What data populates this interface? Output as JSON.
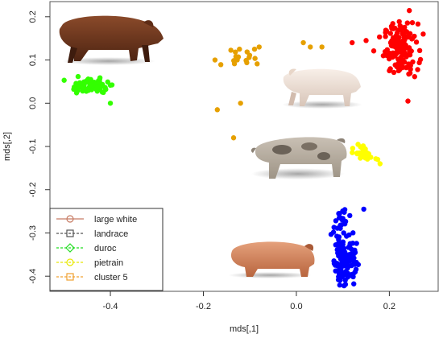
{
  "chart_data": {
    "type": "scatter",
    "xlabel": "mds[,1]",
    "ylabel": "mds[,2]",
    "xlim": [
      -0.53,
      0.305
    ],
    "ylim": [
      -0.435,
      0.235
    ],
    "x_ticks": [
      -0.4,
      -0.2,
      0.0,
      0.2
    ],
    "x_tick_labels": [
      "-0.4",
      "-0.2",
      "0.0",
      "0.2"
    ],
    "y_ticks": [
      -0.4,
      -0.3,
      -0.2,
      -0.1,
      0.0,
      0.1,
      0.2
    ],
    "y_tick_labels": [
      "-0.4",
      "-0.3",
      "-0.2",
      "-0.1",
      "0.0",
      "0.1",
      "0.2"
    ],
    "grid": false,
    "legend_position": "bottom-left",
    "legend": [
      {
        "label": "large white",
        "color": "#c77b63",
        "symbol": "circle"
      },
      {
        "label": "landrace",
        "color": "#555555",
        "symbol": "square"
      },
      {
        "label": "duroc",
        "color": "#22dd22",
        "symbol": "diamond"
      },
      {
        "label": "pietrain",
        "color": "#e8e800",
        "symbol": "circle"
      },
      {
        "label": "cluster 5",
        "color": "#f0a030",
        "symbol": "square"
      }
    ],
    "series": [
      {
        "color": "#ff0000",
        "clusters": [
          {
            "cx": 0.225,
            "cy": 0.125,
            "sx": 0.018,
            "sy": 0.03,
            "n": 140
          }
        ],
        "extra": [
          [
            0.12,
            0.14
          ],
          [
            0.15,
            0.145
          ],
          [
            0.24,
            0.005
          ]
        ]
      },
      {
        "color": "#0000ff",
        "clusters": [
          {
            "cx": 0.105,
            "cy": -0.36,
            "sx": 0.012,
            "sy": 0.03,
            "n": 110
          },
          {
            "cx": 0.095,
            "cy": -0.28,
            "sx": 0.01,
            "sy": 0.02,
            "n": 25
          }
        ],
        "extra": [
          [
            0.145,
            -0.245
          ]
        ]
      },
      {
        "color": "#33ff00",
        "clusters": [
          {
            "cx": -0.445,
            "cy": 0.04,
            "sx": 0.02,
            "sy": 0.008,
            "n": 70
          }
        ],
        "extra": [
          [
            -0.415,
            0.025
          ],
          [
            -0.41,
            0.032
          ],
          [
            -0.4,
            0.0
          ]
        ]
      },
      {
        "color": "#ffff00",
        "clusters": [
          {
            "cx": 0.145,
            "cy": -0.115,
            "sx": 0.01,
            "sy": 0.012,
            "n": 30
          }
        ],
        "extra": [
          [
            0.16,
            -0.125
          ],
          [
            0.175,
            -0.13
          ],
          [
            0.18,
            -0.14
          ]
        ]
      },
      {
        "color": "#e6a000",
        "clusters": [
          {
            "cx": -0.125,
            "cy": 0.105,
            "sx": 0.015,
            "sy": 0.012,
            "n": 16
          }
        ],
        "extra": [
          [
            -0.175,
            0.1
          ],
          [
            -0.09,
            0.125
          ],
          [
            -0.08,
            0.13
          ],
          [
            -0.17,
            -0.015
          ],
          [
            -0.135,
            -0.08
          ],
          [
            -0.12,
            0.0
          ],
          [
            0.015,
            0.14
          ],
          [
            0.03,
            0.13
          ],
          [
            0.055,
            0.13
          ]
        ]
      }
    ]
  }
}
